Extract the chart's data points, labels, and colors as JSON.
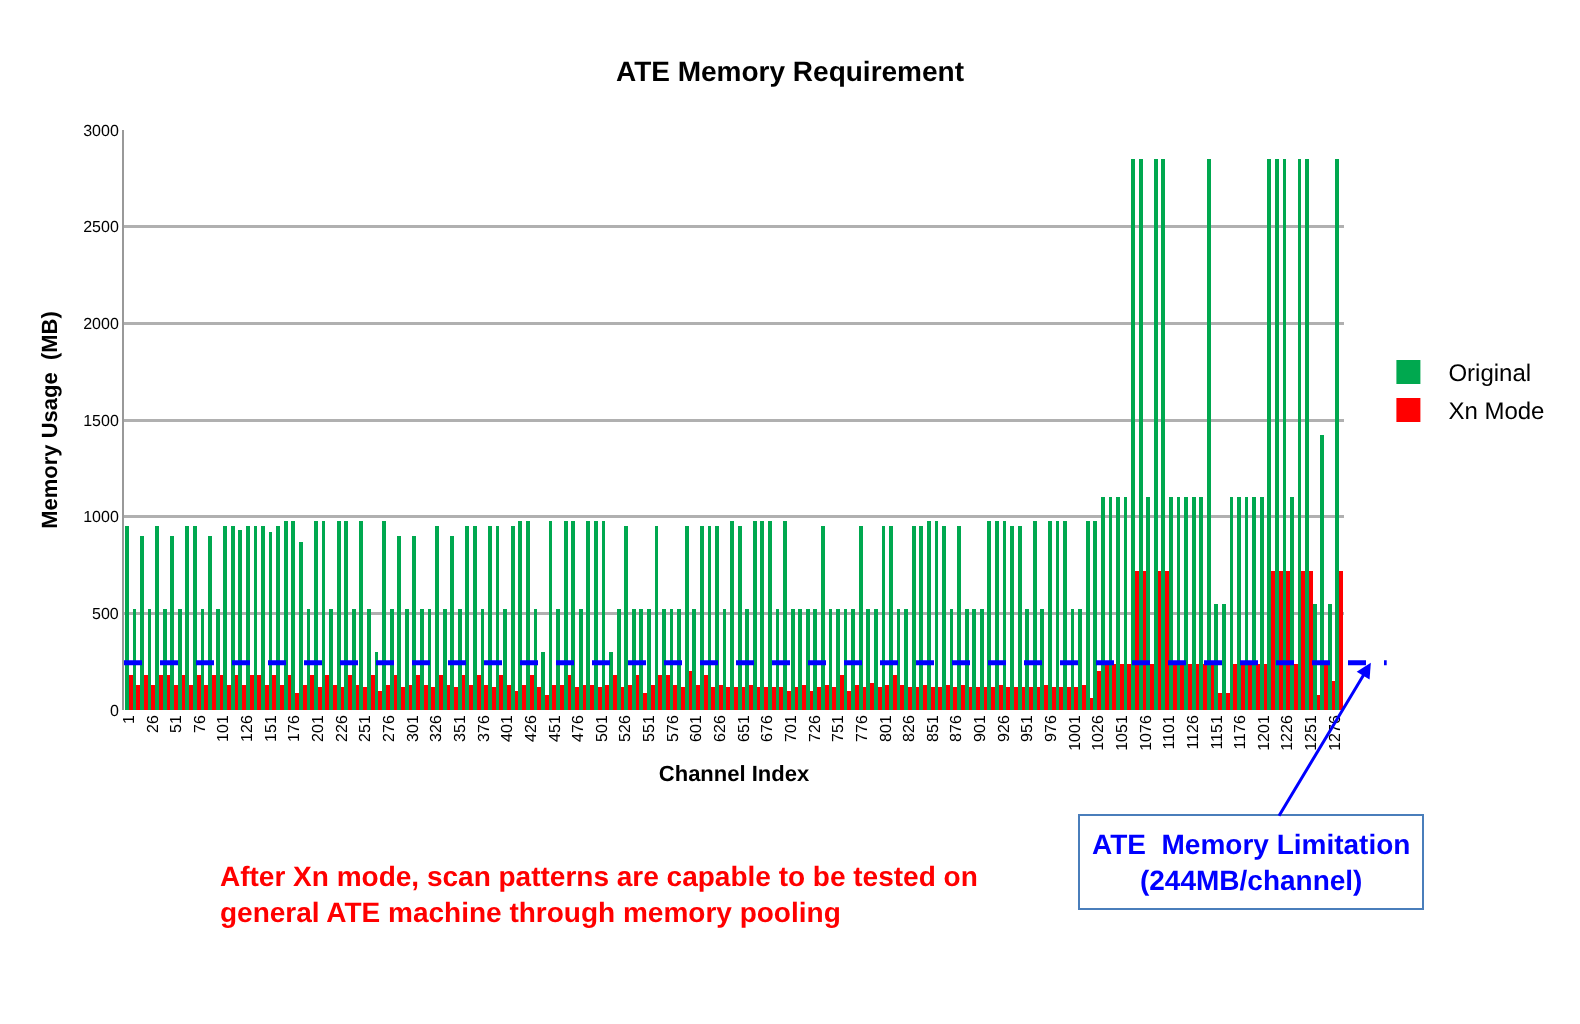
{
  "chart_data": {
    "type": "bar",
    "title": "ATE Memory Requirement",
    "xlabel": "Channel Index",
    "ylabel": "Memory Usage  (MB)",
    "x": [
      1,
      9,
      17,
      25,
      33,
      41,
      49,
      57,
      65,
      73,
      81,
      89,
      97,
      105,
      113,
      121,
      129,
      137,
      145,
      153,
      161,
      169,
      177,
      185,
      193,
      201,
      209,
      217,
      225,
      233,
      241,
      249,
      257,
      265,
      273,
      281,
      289,
      297,
      305,
      313,
      321,
      329,
      337,
      345,
      353,
      361,
      369,
      377,
      385,
      393,
      401,
      409,
      417,
      425,
      433,
      441,
      449,
      457,
      465,
      473,
      481,
      489,
      497,
      505,
      513,
      521,
      529,
      537,
      545,
      553,
      561,
      569,
      577,
      585,
      593,
      601,
      609,
      617,
      625,
      633,
      641,
      649,
      657,
      665,
      673,
      681,
      689,
      697,
      705,
      713,
      721,
      729,
      737,
      745,
      753,
      761,
      769,
      777,
      785,
      793,
      801,
      809,
      817,
      825,
      833,
      841,
      849,
      857,
      865,
      873,
      881,
      889,
      897,
      905,
      913,
      921,
      929,
      937,
      945,
      953,
      961,
      969,
      977,
      985,
      993,
      1001,
      1009,
      1017,
      1025,
      1033,
      1041,
      1049,
      1057,
      1065,
      1073,
      1081,
      1089,
      1097,
      1105,
      1113,
      1121,
      1129,
      1137,
      1145,
      1153,
      1161,
      1169,
      1177,
      1185,
      1193,
      1201,
      1209,
      1217,
      1225,
      1233,
      1241,
      1249,
      1257,
      1265,
      1273,
      1281
    ],
    "series": [
      {
        "name": "Original",
        "color": "#00a84f",
        "values": [
          950,
          520,
          900,
          520,
          950,
          520,
          900,
          520,
          950,
          950,
          520,
          900,
          520,
          950,
          950,
          930,
          950,
          950,
          950,
          920,
          950,
          980,
          980,
          870,
          520,
          980,
          980,
          520,
          980,
          980,
          520,
          980,
          520,
          300,
          980,
          520,
          900,
          520,
          900,
          520,
          520,
          950,
          520,
          900,
          520,
          950,
          950,
          520,
          950,
          950,
          520,
          950,
          980,
          980,
          520,
          300,
          980,
          520,
          980,
          980,
          520,
          980,
          980,
          980,
          300,
          520,
          950,
          520,
          520,
          520,
          950,
          520,
          520,
          520,
          950,
          520,
          950,
          950,
          950,
          520,
          980,
          950,
          520,
          980,
          980,
          980,
          520,
          980,
          520,
          520,
          520,
          520,
          950,
          520,
          520,
          520,
          520,
          950,
          520,
          520,
          950,
          950,
          520,
          520,
          950,
          950,
          980,
          980,
          950,
          520,
          950,
          520,
          520,
          520,
          980,
          980,
          980,
          950,
          950,
          520,
          980,
          520,
          980,
          980,
          980,
          520,
          520,
          980,
          980,
          1100,
          1100,
          1100,
          1100,
          2850,
          2850,
          1100,
          2850,
          2850,
          1100,
          1100,
          1100,
          1100,
          1100,
          2850,
          550,
          550,
          1100,
          1100,
          1100,
          1100,
          1100,
          2850,
          2850,
          2850,
          1100,
          2850,
          2850,
          550,
          1420,
          550,
          2850
        ]
      },
      {
        "name": "Xn Mode",
        "color": "#ff0000",
        "values": [
          180,
          130,
          180,
          130,
          180,
          180,
          130,
          180,
          130,
          180,
          130,
          180,
          180,
          130,
          180,
          130,
          180,
          180,
          130,
          180,
          130,
          180,
          90,
          130,
          180,
          120,
          180,
          130,
          120,
          180,
          130,
          120,
          180,
          100,
          130,
          180,
          120,
          130,
          180,
          130,
          120,
          180,
          130,
          120,
          180,
          130,
          180,
          130,
          120,
          180,
          130,
          100,
          130,
          180,
          120,
          80,
          130,
          130,
          180,
          120,
          130,
          130,
          120,
          130,
          180,
          120,
          130,
          180,
          90,
          130,
          180,
          180,
          130,
          120,
          200,
          130,
          180,
          120,
          130,
          120,
          120,
          120,
          130,
          120,
          120,
          120,
          120,
          100,
          120,
          130,
          100,
          120,
          130,
          120,
          180,
          100,
          130,
          120,
          140,
          120,
          130,
          180,
          130,
          120,
          120,
          130,
          120,
          120,
          130,
          120,
          130,
          120,
          120,
          120,
          120,
          130,
          120,
          120,
          120,
          120,
          120,
          130,
          120,
          120,
          120,
          120,
          130,
          60,
          200,
          240,
          240,
          240,
          240,
          720,
          720,
          240,
          720,
          720,
          240,
          240,
          240,
          240,
          240,
          240,
          90,
          90,
          240,
          240,
          240,
          240,
          240,
          720,
          720,
          720,
          240,
          720,
          720,
          80,
          240,
          150,
          720
        ]
      }
    ],
    "xlim": [
      -4,
      1286
    ],
    "xticks": [
      1,
      26,
      51,
      76,
      101,
      126,
      151,
      176,
      201,
      226,
      251,
      276,
      301,
      326,
      351,
      376,
      401,
      426,
      451,
      476,
      501,
      526,
      551,
      576,
      601,
      626,
      651,
      676,
      701,
      726,
      751,
      776,
      801,
      826,
      851,
      876,
      901,
      926,
      951,
      976,
      1001,
      1026,
      1051,
      1076,
      1101,
      1126,
      1151,
      1176,
      1201,
      1226,
      1251,
      1276
    ],
    "ylim": [
      0,
      3000
    ],
    "yticks": [
      0,
      500,
      1000,
      1500,
      2000,
      2500,
      3000
    ],
    "grid": "y",
    "legend": "right",
    "ref_lines": [
      {
        "axis": "y",
        "value": 244,
        "label": "ATE  Memory Limitation\n(244MB/channel)",
        "color": "#0000ff",
        "line_style": "dashed"
      }
    ],
    "annotations": [
      "After Xn mode, scan patterns are capable to be tested on\ngeneral ATE machine through memory pooling"
    ]
  }
}
